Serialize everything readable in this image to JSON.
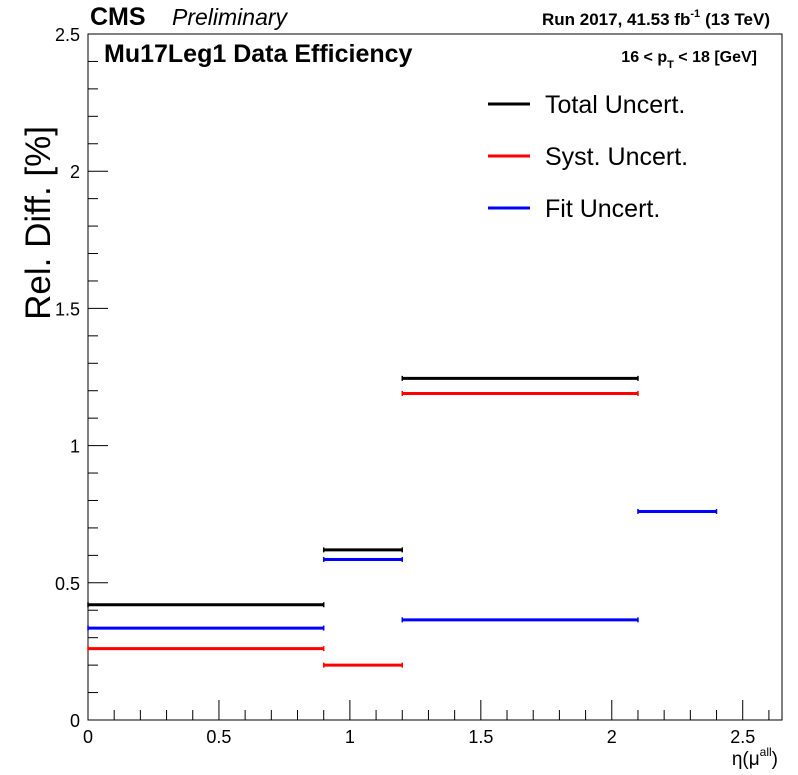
{
  "header": {
    "experiment": "CMS",
    "status": "Preliminary",
    "lumi_prefix": "Run 2017,  41.53 fb",
    "lumi_exp": "-1",
    "lumi_suffix": "(13 TeV)"
  },
  "chart_data": {
    "type": "line",
    "title": "Mu17Leg1 Data Efficiency",
    "selection": {
      "prefix": "16 < p",
      "sub": "T",
      "suffix": " < 18 [GeV]"
    },
    "ylabel": "Rel. Diff. [%]",
    "xlabel": {
      "base": "η(μ",
      "sup": "all",
      "close": ")"
    },
    "xlim": [
      0,
      2.65
    ],
    "ylim": [
      0,
      2.5
    ],
    "xticks": [
      0,
      0.5,
      1,
      1.5,
      2,
      2.5
    ],
    "xtick_labels": [
      "0",
      "0.5",
      "1",
      "1.5",
      "2",
      "2.5"
    ],
    "yticks": [
      0,
      0.5,
      1,
      1.5,
      2,
      2.5
    ],
    "ytick_labels": [
      "0",
      "0.5",
      "1",
      "1.5",
      "2",
      "2.5"
    ],
    "grid": false,
    "legend_position": "top-right",
    "series": [
      {
        "name": "Total Uncert.",
        "color": "#000000",
        "segments": [
          {
            "x0": 0.0,
            "x1": 0.9,
            "y": 0.42
          },
          {
            "x0": 0.9,
            "x1": 1.2,
            "y": 0.62
          },
          {
            "x0": 1.2,
            "x1": 2.1,
            "y": 1.245
          }
        ]
      },
      {
        "name": "Syst. Uncert.",
        "color": "#ff0000",
        "segments": [
          {
            "x0": 0.0,
            "x1": 0.9,
            "y": 0.26
          },
          {
            "x0": 0.9,
            "x1": 1.2,
            "y": 0.2
          },
          {
            "x0": 1.2,
            "x1": 2.1,
            "y": 1.19
          }
        ]
      },
      {
        "name": "Fit Uncert.",
        "color": "#0000ff",
        "segments": [
          {
            "x0": 0.0,
            "x1": 0.9,
            "y": 0.335
          },
          {
            "x0": 0.9,
            "x1": 1.2,
            "y": 0.585
          },
          {
            "x0": 1.2,
            "x1": 2.1,
            "y": 0.365
          },
          {
            "x0": 2.1,
            "x1": 2.4,
            "y": 0.76
          }
        ]
      }
    ]
  }
}
